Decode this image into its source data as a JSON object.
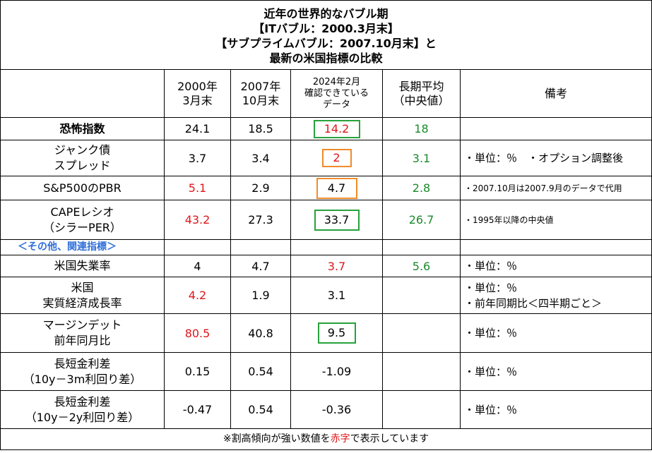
{
  "title": {
    "line1": "近年の世界的なバブル期",
    "line2": "【ITバブル：2000.3月末】",
    "line3": "【サブプライムバブル：2007.10月末】と",
    "line4": "最新の米国指標の比較"
  },
  "headers": {
    "col1_line1": "2000年",
    "col1_line2": "3月末",
    "col2_line1": "2007年",
    "col2_line2": "10月末",
    "col3_line1": "2024年2月",
    "col3_line2": "確認できている",
    "col3_line3": "データ",
    "col4_line1": "長期平均",
    "col4_line2": "（中央値）",
    "col5": "備考"
  },
  "rows": [
    {
      "label": "恐怖指数",
      "v2000": "24.1",
      "v2007": "18.5",
      "v2024": "14.2",
      "avg": "18",
      "note": ""
    },
    {
      "label_line1": "ジャンク債",
      "label_line2": "スプレッド",
      "v2000": "3.7",
      "v2007": "3.4",
      "v2024": "2",
      "avg": "3.1",
      "note": "・単位：％　・オプション調整後"
    },
    {
      "label": "S&P500のPBR",
      "v2000": "5.1",
      "v2007": "2.9",
      "v2024": "4.7",
      "avg": "2.8",
      "note": "・2007.10月は2007.9月のデータで代用"
    },
    {
      "label_line1": "CAPEレシオ",
      "label_line2": "（シラーPER）",
      "v2000": "43.2",
      "v2007": "27.3",
      "v2024": "33.7",
      "avg": "26.7",
      "note": "・1995年以降の中央値"
    },
    {
      "section": "＜その他、関連指標＞"
    },
    {
      "label": "米国失業率",
      "v2000": "4",
      "v2007": "4.7",
      "v2024": "3.7",
      "avg": "5.6",
      "note": "・単位：％"
    },
    {
      "label_line1": "米国",
      "label_line2": "実質経済成長率",
      "v2000": "4.2",
      "v2007": "1.9",
      "v2024": "3.1",
      "avg": "",
      "note_line1": "・単位：％",
      "note_line2": "・前年同期比＜四半期ごと＞"
    },
    {
      "label_line1": "マージンデット",
      "label_line2": "前年同月比",
      "v2000": "80.5",
      "v2007": "40.8",
      "v2024": "9.5",
      "avg": "",
      "note": "・単位：％"
    },
    {
      "label_line1": "長短金利差",
      "label_line2": "（10y－3m利回り差）",
      "v2000": "0.15",
      "v2007": "0.54",
      "v2024": "-1.09",
      "avg": "",
      "note": "・単位：％"
    },
    {
      "label_line1": "長短金利差",
      "label_line2": "（10y－2y利回り差）",
      "v2000": "-0.47",
      "v2007": "0.54",
      "v2024": "-0.36",
      "avg": "",
      "note": "・単位：％"
    }
  ],
  "footer": {
    "before": "※割高傾向が強い数値を",
    "red": "赤字",
    "after": "で表示しています"
  },
  "colors": {
    "red": "#e0161a",
    "green": "#1a8a2a",
    "blue": "#2e6fd8",
    "box_green": "#27a23c",
    "box_orange": "#f08b2b"
  }
}
